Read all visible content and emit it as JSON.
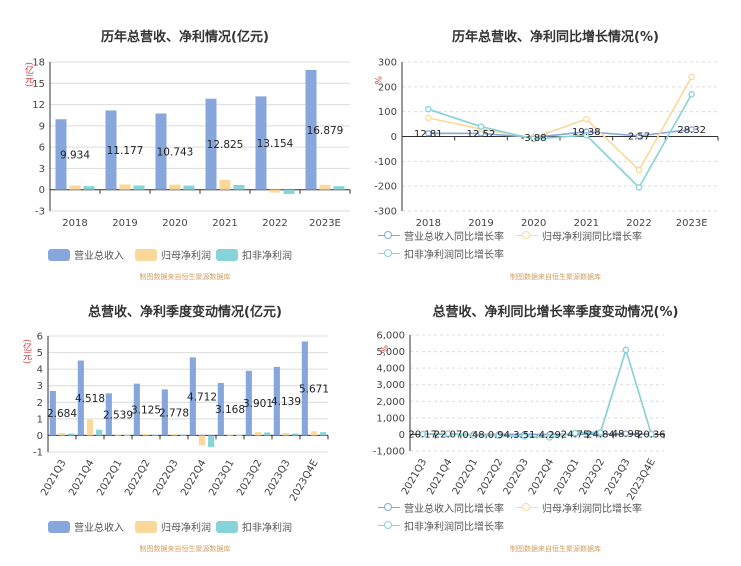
{
  "chart_data": [
    {
      "type": "bar",
      "title": "历年总营收、净利情况(亿元)",
      "unit_label": "(亿元)",
      "categories": [
        "2018",
        "2019",
        "2020",
        "2021",
        "2022",
        "2023E"
      ],
      "ylim": [
        -3,
        18
      ],
      "yticks": [
        "18",
        "15",
        "12",
        "9",
        "6",
        "3",
        "0",
        "-3"
      ],
      "series": [
        {
          "name": "营业总收入",
          "color": "#87a7dc",
          "values": [
            9.934,
            11.177,
            10.743,
            12.825,
            13.154,
            16.879
          ],
          "data_labels": [
            "9.934",
            "11.177",
            "10.743",
            "12.825",
            "13.154",
            "16.879"
          ]
        },
        {
          "name": "归母净利润",
          "color": "#fbd89a",
          "values": [
            0.6,
            0.75,
            0.72,
            1.4,
            -0.4,
            0.7
          ]
        },
        {
          "name": "扣非净利润",
          "color": "#86d3d9",
          "values": [
            0.5,
            0.6,
            0.58,
            0.68,
            -0.6,
            0.5
          ]
        }
      ],
      "source_text": "制图数据来自恒生聚源数据库"
    },
    {
      "type": "line",
      "title": "历年总营收、净利同比增长情况(%)",
      "unit_label": "%",
      "categories": [
        "2018",
        "2019",
        "2020",
        "2021",
        "2022",
        "2023E"
      ],
      "ylim": [
        -300,
        300
      ],
      "yticks": [
        "300",
        "200",
        "100",
        "0",
        "-100",
        "-200",
        "-300"
      ],
      "series": [
        {
          "name": "营业总收入同比增长率",
          "color": "#87a7dc",
          "values": [
            12.81,
            12.52,
            -3.88,
            19.38,
            2.57,
            28.32
          ],
          "data_labels": [
            "12.81",
            "12.52",
            "-3.88",
            "19.38",
            "2.57",
            "28.32"
          ]
        },
        {
          "name": "归母净利润同比增长率",
          "color": "#fbd89a",
          "values": [
            75,
            30,
            -5,
            70,
            -135,
            240
          ]
        },
        {
          "name": "扣非净利润同比增长率",
          "color": "#86d3d9",
          "values": [
            110,
            40,
            -10,
            5,
            -205,
            170
          ]
        }
      ],
      "source_text": "制图数据来自恒生聚源数据库"
    },
    {
      "type": "bar",
      "title": "总营收、净利季度变动情况(亿元)",
      "unit_label": "(亿元)",
      "categories": [
        "2021Q3",
        "2021Q4",
        "2022Q1",
        "2022Q2",
        "2022Q3",
        "2022Q4",
        "2023Q1",
        "2023Q2",
        "2023Q3",
        "2023Q4E"
      ],
      "ylim": [
        -1,
        6
      ],
      "yticks": [
        "6",
        "5",
        "4",
        "3",
        "2",
        "1",
        "0",
        "-1"
      ],
      "series": [
        {
          "name": "营业总收入",
          "color": "#87a7dc",
          "values": [
            2.684,
            4.518,
            2.539,
            3.125,
            2.778,
            4.712,
            3.168,
            3.901,
            4.139,
            5.671
          ],
          "data_labels": [
            "2.684",
            "4.518",
            "2.539",
            "3.125",
            "2.778",
            "4.712",
            "3.168",
            "3.901",
            "4.139",
            "5.671"
          ]
        },
        {
          "name": "归母净利润",
          "color": "#fbd89a",
          "values": [
            0.15,
            0.95,
            0.05,
            0.08,
            0.08,
            -0.6,
            0.05,
            0.2,
            0.15,
            0.25
          ]
        },
        {
          "name": "扣非净利润",
          "color": "#86d3d9",
          "values": [
            0.12,
            0.35,
            0.03,
            0.05,
            0.05,
            -0.7,
            0.03,
            0.18,
            0.12,
            0.2
          ]
        }
      ],
      "source_text": "制图数据来自恒生聚源数据库"
    },
    {
      "type": "line",
      "title": "总营收、净利同比增长率季度变动情况(%)",
      "unit_label": "%",
      "categories": [
        "2021Q3",
        "2021Q4",
        "2022Q1",
        "2022Q2",
        "2022Q3",
        "2022Q4",
        "2023Q1",
        "2023Q2",
        "2023Q3",
        "2023Q4E"
      ],
      "ylim": [
        -1000,
        6000
      ],
      "yticks": [
        "6,000",
        "5,000",
        "4,000",
        "3,000",
        "2,000",
        "1,000",
        "0",
        "-1,000"
      ],
      "series": [
        {
          "name": "营业总收入同比增长率",
          "color": "#87a7dc",
          "values": [
            20.17,
            22.07,
            0.48,
            0.94,
            3.51,
            4.29,
            24.75,
            24.84,
            48.98,
            20.36
          ],
          "data_labels": [
            "20.17",
            "22.07",
            "0.48",
            "0.94",
            "3.51",
            "4.29",
            "24.75",
            "24.84",
            "48.98",
            "20.36"
          ]
        },
        {
          "name": "归母净利润同比增长率",
          "color": "#fbd89a",
          "values": [
            40,
            60,
            -50,
            -60,
            -100,
            -150,
            100,
            150,
            5100,
            30
          ]
        },
        {
          "name": "扣非净利润同比增长率",
          "color": "#86d3d9",
          "values": [
            30,
            50,
            -70,
            -80,
            -120,
            -180,
            80,
            120,
            5100,
            20
          ]
        }
      ],
      "source_text": "制图数据来自恒生聚源数据库"
    }
  ]
}
